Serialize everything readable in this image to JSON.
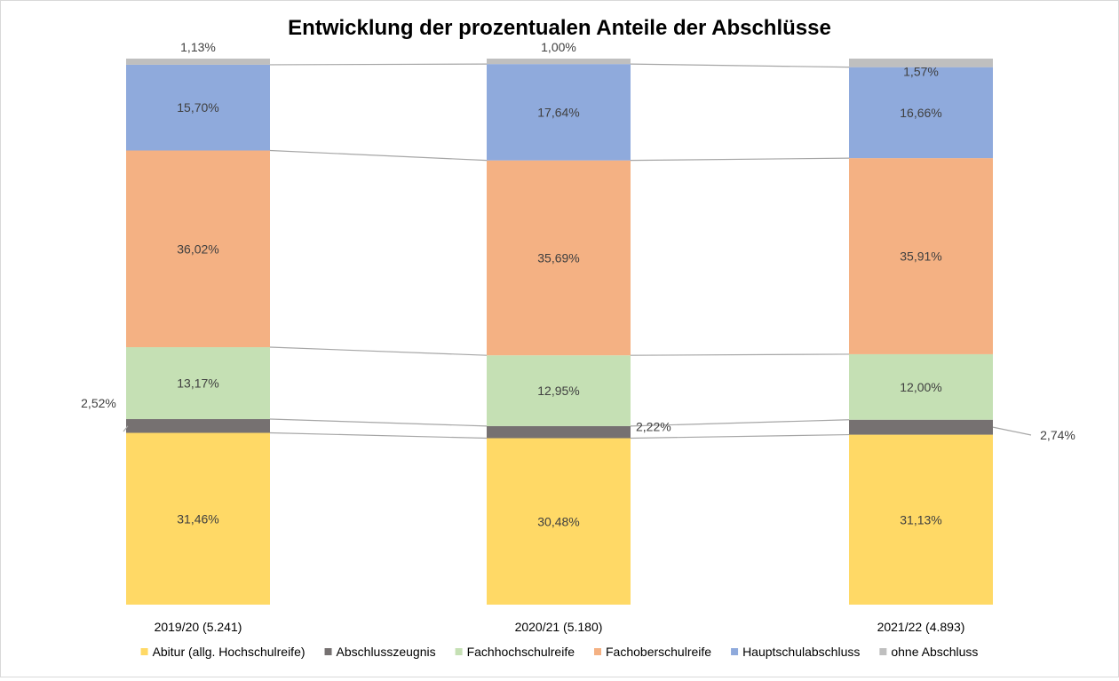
{
  "chart_data": {
    "type": "bar",
    "stacked": "percent",
    "title": "Entwicklung der prozentualen Anteile der Abschlüsse",
    "categories": [
      "2019/20 (5.241)",
      "2020/21 (5.180)",
      "2021/22 (4.893)"
    ],
    "series": [
      {
        "name": "Abitur (allg. Hochschulreife)",
        "color": "#ffd966",
        "values": [
          31.46,
          30.48,
          31.13
        ],
        "labels": [
          "31,46%",
          "30,48%",
          "31,13%"
        ]
      },
      {
        "name": "Abschlusszeugnis",
        "color": "#767171",
        "values": [
          2.52,
          2.22,
          2.74
        ],
        "labels": [
          "2,52%",
          "2,22%",
          "2,74%"
        ]
      },
      {
        "name": "Fachhochschulreife",
        "color": "#c5e0b4",
        "values": [
          13.17,
          12.95,
          12.0
        ],
        "labels": [
          "13,17%",
          "12,95%",
          "12,00%"
        ]
      },
      {
        "name": "Fachoberschulreife",
        "color": "#f4b183",
        "values": [
          36.02,
          35.69,
          35.91
        ],
        "labels": [
          "36,02%",
          "35,69%",
          "35,91%"
        ]
      },
      {
        "name": "Hauptschulabschluss",
        "color": "#8faadc",
        "values": [
          15.7,
          17.64,
          16.66
        ],
        "labels": [
          "15,70%",
          "17,64%",
          "16,66%"
        ]
      },
      {
        "name": "ohne Abschluss",
        "color": "#bfbfbf",
        "values": [
          1.13,
          1.0,
          1.57
        ],
        "labels": [
          "1,13%",
          "1,00%",
          "1,57%"
        ]
      }
    ],
    "series_lines": true,
    "legend": "bottom",
    "grid": false,
    "ylim": [
      0,
      100
    ]
  }
}
